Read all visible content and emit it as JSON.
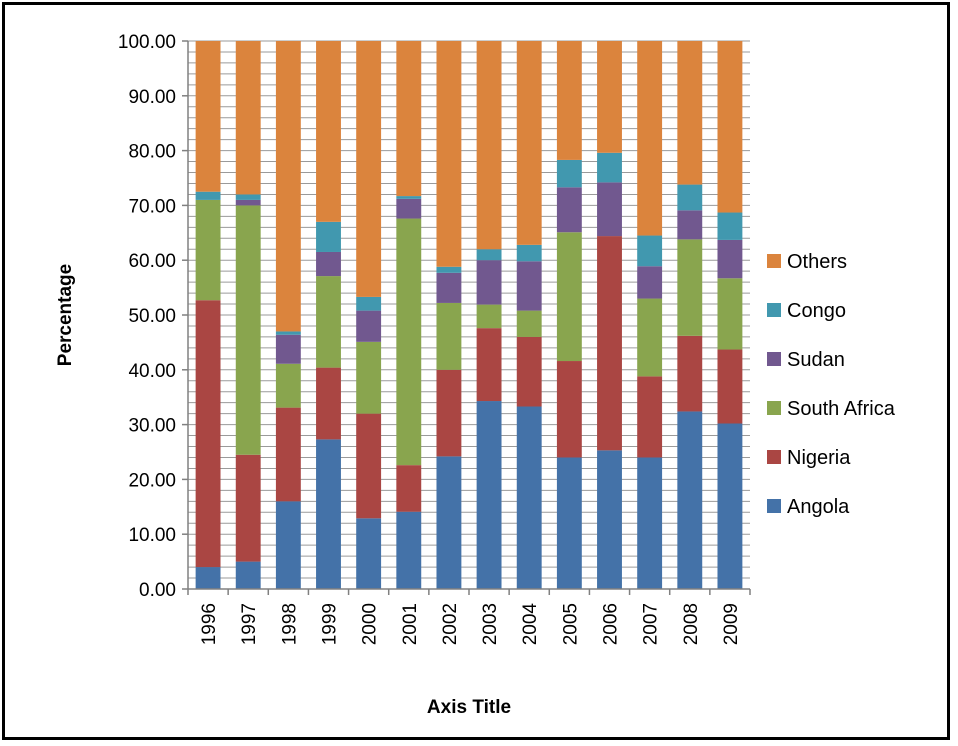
{
  "chart_data": {
    "type": "bar",
    "stacked": true,
    "categories": [
      "1996",
      "1997",
      "1998",
      "1999",
      "2000",
      "2001",
      "2002",
      "2003",
      "2004",
      "2005",
      "2006",
      "2007",
      "2008",
      "2009"
    ],
    "series": [
      {
        "name": "Angola",
        "color": "#4472A8",
        "values": [
          4.0,
          5.0,
          16.0,
          27.3,
          12.9,
          14.1,
          24.2,
          34.3,
          33.3,
          24.0,
          25.3,
          24.0,
          32.4,
          30.2
        ]
      },
      {
        "name": "Nigeria",
        "color": "#AA4643",
        "values": [
          48.7,
          19.5,
          17.1,
          13.1,
          19.1,
          8.5,
          15.8,
          13.3,
          12.7,
          17.6,
          39.1,
          14.8,
          13.8,
          13.5
        ]
      },
      {
        "name": "South Africa",
        "color": "#89A54E",
        "values": [
          18.3,
          45.5,
          8.0,
          16.7,
          13.1,
          45.0,
          12.2,
          4.3,
          4.8,
          23.5,
          0.0,
          14.2,
          17.6,
          13.0
        ]
      },
      {
        "name": "Sudan",
        "color": "#71588F",
        "values": [
          0.0,
          1.0,
          5.3,
          4.4,
          5.7,
          3.6,
          5.5,
          8.1,
          9.0,
          8.2,
          9.8,
          5.9,
          5.3,
          7.0
        ]
      },
      {
        "name": "Congo",
        "color": "#4198AF",
        "values": [
          1.5,
          1.0,
          0.6,
          5.5,
          2.5,
          0.5,
          1.1,
          2.0,
          3.0,
          5.0,
          5.4,
          5.6,
          4.7,
          5.0
        ]
      },
      {
        "name": "Others",
        "color": "#DB843D",
        "values": [
          27.5,
          28.0,
          53.0,
          33.0,
          46.7,
          28.3,
          41.2,
          38.0,
          37.2,
          21.7,
          20.4,
          35.5,
          26.2,
          31.3
        ]
      }
    ],
    "ylim": [
      0,
      100
    ],
    "ytick_step": 10,
    "ytick_labels": [
      "0.00",
      "10.00",
      "20.00",
      "30.00",
      "40.00",
      "50.00",
      "60.00",
      "70.00",
      "80.00",
      "90.00",
      "100.00"
    ],
    "xlabel": "Axis Title",
    "ylabel": "Percentage",
    "grid": true,
    "legend_position": "right",
    "legend_order": [
      "Others",
      "Congo",
      "Sudan",
      "South Africa",
      "Nigeria",
      "Angola"
    ]
  }
}
